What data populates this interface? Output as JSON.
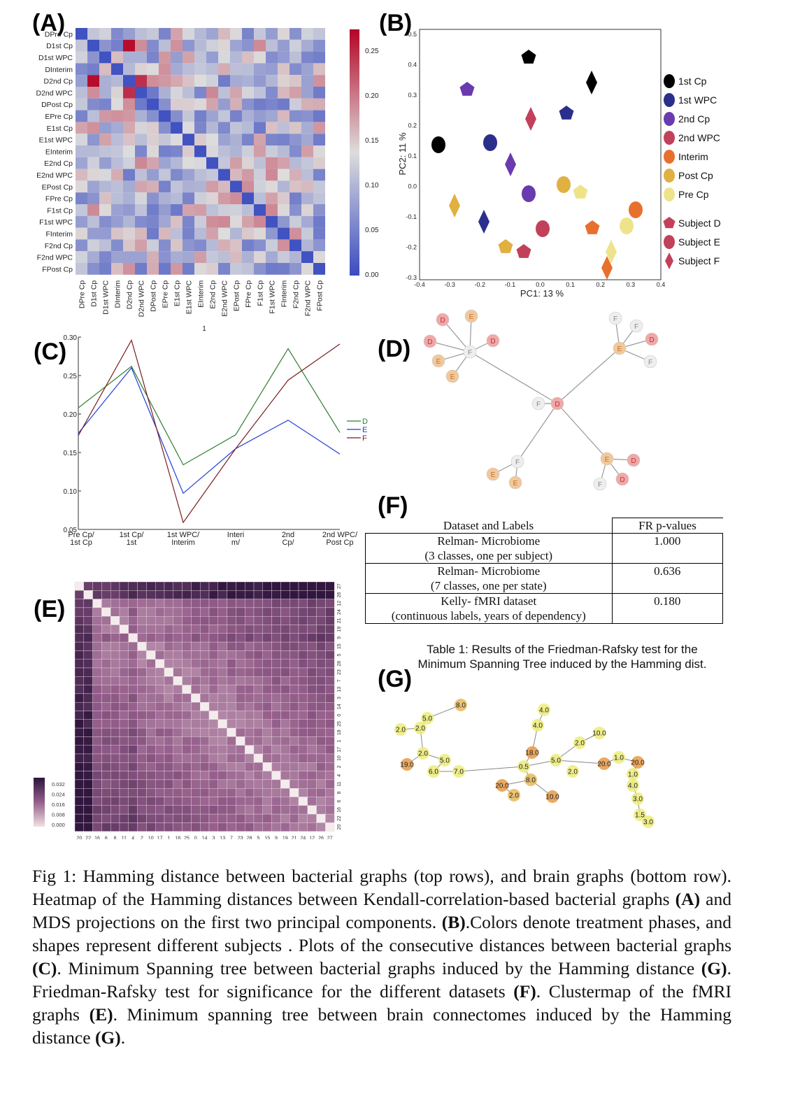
{
  "labels": {
    "A": "(A)",
    "B": "(B)",
    "C": "(C)",
    "D": "(D)",
    "E": "(E)",
    "F": "(F)",
    "G": "(G)"
  },
  "panelA": {
    "row_labels": [
      "DPre Cp",
      "D1st Cp",
      "D1st WPC",
      "DInterim",
      "D2nd Cp",
      "D2nd WPC",
      "DPost Cp",
      "EPre Cp",
      "E1st Cp",
      "E1st WPC",
      "EInterim",
      "E2nd Cp",
      "E2nd WPC",
      "EPost Cp",
      "FPre Cp",
      "F1st Cp",
      "F1st WPC",
      "FInterim",
      "F2nd Cp",
      "F2nd WPC",
      "FPost Cp"
    ],
    "col_labels": [
      "DPre Cp",
      "D1st Cp",
      "D1st WPC",
      "DInterim",
      "D2nd Cp",
      "D2nd WPC",
      "DPost Cp",
      "EPre Cp",
      "E1st Cp",
      "E1st WPC",
      "EInterim",
      "E2nd Cp",
      "E2nd WPC",
      "EPost Cp",
      "FPre Cp",
      "F1st Cp",
      "F1st WPC",
      "FInterim",
      "F2nd Cp",
      "F2nd WPC",
      "FPost Cp"
    ],
    "colorbar_ticks": [
      "0.25",
      "0.20",
      "0.15",
      "0.10",
      "0.05",
      "0.00"
    ],
    "stray_label": "1",
    "colors": {
      "low": "#3b4cc0",
      "mid": "#dddddd",
      "high": "#b40426"
    }
  },
  "panelB": {
    "xlabel": "PC1: 13 %",
    "ylabel": "PC2: 11 %",
    "x_ticks": [
      "-0.4",
      "-0.3",
      "-0.2",
      "-0.1",
      "0.0",
      "0.1",
      "0.2",
      "0.3",
      "0.4"
    ],
    "y_ticks": [
      "0.5",
      "0.4",
      "0.3",
      "0.2",
      "0.1",
      "0.0",
      "-0.1",
      "-0.2",
      "-0.3"
    ],
    "legend": [
      {
        "label": "1st Cp",
        "color": "#000000",
        "shape": "circle"
      },
      {
        "label": "1st WPC",
        "color": "#2b2f8c",
        "shape": "circle"
      },
      {
        "label": "2nd Cp",
        "color": "#6a3aaf",
        "shape": "circle"
      },
      {
        "label": "2nd WPC",
        "color": "#c2415a",
        "shape": "circle"
      },
      {
        "label": "Interim",
        "color": "#e8702e",
        "shape": "circle"
      },
      {
        "label": "Post Cp",
        "color": "#e0b040",
        "shape": "circle"
      },
      {
        "label": "Pre Cp",
        "color": "#eee38a",
        "shape": "circle"
      },
      {
        "label": "Subject D",
        "color": "#c2415a",
        "shape": "pentagon"
      },
      {
        "label": "Subject E",
        "color": "#c2415a",
        "shape": "circle"
      },
      {
        "label": "Subject F",
        "color": "#c2415a",
        "shape": "diamond"
      }
    ]
  },
  "panelC": {
    "x_ticks": [
      "Pre Cp/\n1st Cp",
      "1st Cp/\n1st",
      "1st WPC/\nInterim",
      "Interi\nm/",
      "2nd\nCp/",
      "2nd WPC/\nPost Cp"
    ],
    "y_ticks": [
      "0.30",
      "0.25",
      "0.20",
      "0.15",
      "0.10",
      "0.05"
    ],
    "legend": [
      "D",
      "E",
      "F"
    ],
    "colors": {
      "D": "#2e7d2e",
      "E": "#1f3fd6",
      "F": "#7a1f1f"
    }
  },
  "panelD": {
    "node_letters": [
      "D",
      "E",
      "F"
    ]
  },
  "panelE": {
    "axis_labels": [
      "20",
      "22",
      "16",
      "6",
      "8",
      "11",
      "4",
      "2",
      "10",
      "17",
      "1",
      "18",
      "25",
      "0",
      "14",
      "3",
      "13",
      "7",
      "23",
      "28",
      "5",
      "15",
      "9",
      "19",
      "21",
      "24",
      "12",
      "26",
      "27"
    ],
    "colorbar_ticks": [
      "0.032",
      "0.024",
      "0.016",
      "0.008",
      "0.000"
    ]
  },
  "table": {
    "headers": [
      "Dataset and Labels",
      "FR p-values"
    ],
    "rows": [
      {
        "name": "Relman- Microbiome",
        "detail": "(3 classes, one per subject)",
        "p": "1.000"
      },
      {
        "name": "Relman- Microbiome",
        "detail": "(7 classes, one per state)",
        "p": "0.636"
      },
      {
        "name": "Kelly- fMRI dataset",
        "detail": "(continuous labels, years of dependency)",
        "p": "0.180"
      }
    ],
    "caption": "Table 1: Results of the Friedman-Rafsky test for the Minimum Spanning Tree induced by the Hamming dist."
  },
  "panelG": {
    "node_labels": [
      "8.0",
      "5.0",
      "2.0",
      "2.0",
      "2.0",
      "19.0",
      "5.0",
      "6.0",
      "7.0",
      "4.0",
      "4.0",
      "2.0",
      "18.0",
      "10.0",
      "0.5",
      "5.0",
      "2.0",
      "8.0",
      "20.0",
      "2.0",
      "10.0",
      "20.0",
      "1.0",
      "20.0",
      "1.0",
      "4.0",
      "3.0",
      "1.5",
      "3.0"
    ]
  },
  "caption": {
    "p1": "Fig 1: Hamming distance between bacterial graphs (top rows), and brain graphs (bottom row). Heatmap of the Hamming distances between Kendall-correlation-based bacterial graphs ",
    "b1": "(A)",
    "p2": " and MDS projections on the first two principal components. ",
    "b2": "(B)",
    "p3": ".Colors denote treatment phases, and shapes represent different subjects . Plots of the consecutive distances between bacterial graphs ",
    "b3": "(C)",
    "p4": ". Minimum Spanning tree between bacterial graphs induced by the Hamming distance ",
    "b4": "(G)",
    "p5": ". Friedman-Rafsky test for significance for the different datasets ",
    "b5": "(F)",
    "p6": ". Clustermap of the fMRI graphs ",
    "b6": "(E)",
    "p7": ". Minimum spanning tree between brain connectomes induced by the Hamming distance ",
    "b7": "(G)",
    "p8": "."
  }
}
